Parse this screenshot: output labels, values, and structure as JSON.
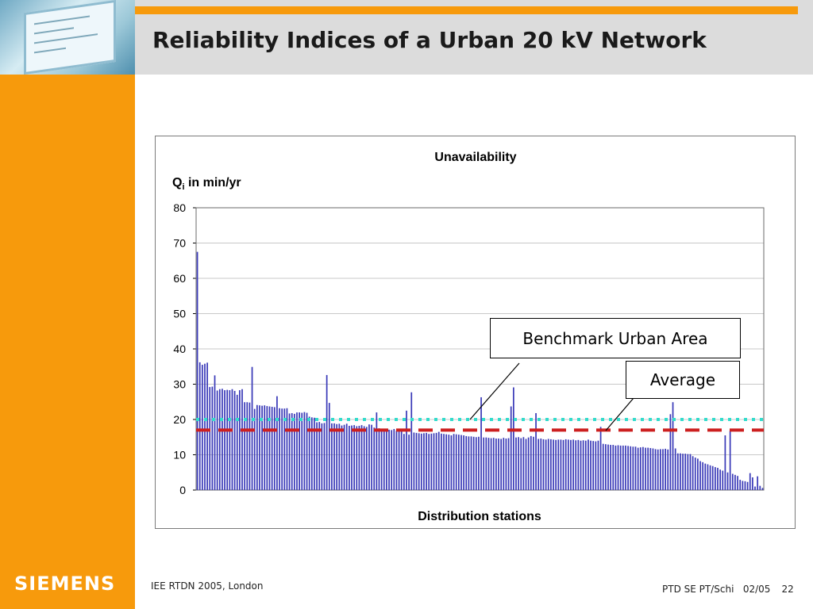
{
  "slide": {
    "title": "Reliability Indices of a Urban 20 kV Network",
    "logo": "SIEMENS",
    "footer_left": "IEE RTDN 2005, London",
    "footer_org": "PTD SE PT/Schi",
    "footer_date": "02/05",
    "page_number": "22",
    "colors": {
      "sidebar": "#f79a0c",
      "header": "#dcdcdc"
    }
  },
  "chart_data": {
    "type": "bar",
    "title": "Unavailability",
    "ylabel": "Q",
    "ylabel_sub": "i",
    "ylabel_unit": " in min/yr",
    "xlabel": "Distribution stations",
    "ylim": [
      0,
      80
    ],
    "yticks": [
      0,
      10,
      20,
      30,
      40,
      50,
      60,
      70,
      80
    ],
    "grid": true,
    "bar_color": "#3a3ab8",
    "values": [
      67.5,
      36.2,
      35.5,
      35.8,
      36.1,
      29.2,
      29.3,
      32.5,
      28.2,
      28.6,
      28.7,
      28.3,
      28.4,
      28.3,
      28.6,
      28.1,
      27.0,
      28.3,
      28.6,
      24.9,
      24.9,
      24.8,
      34.9,
      23.0,
      24.1,
      24.0,
      23.9,
      24.0,
      23.8,
      23.7,
      23.6,
      23.5,
      26.6,
      23.2,
      23.1,
      23.1,
      23.2,
      21.7,
      21.8,
      21.6,
      22.0,
      22.0,
      21.9,
      22.1,
      21.9,
      20.8,
      20.6,
      20.5,
      19.2,
      19.3,
      18.9,
      19.0,
      32.6,
      24.7,
      18.9,
      18.9,
      18.7,
      18.8,
      18.3,
      18.5,
      18.8,
      18.2,
      18.3,
      18.4,
      18.1,
      18.2,
      18.4,
      18.1,
      17.9,
      18.6,
      18.5,
      17.7,
      22.0,
      17.5,
      17.4,
      17.3,
      17.2,
      17.1,
      17.0,
      17.3,
      16.8,
      16.9,
      17.0,
      15.9,
      22.5,
      15.7,
      27.7,
      16.3,
      16.2,
      16.1,
      16.0,
      16.1,
      16.2,
      15.9,
      16.0,
      16.1,
      16.2,
      16.5,
      16.0,
      15.9,
      15.8,
      15.7,
      15.5,
      15.9,
      15.8,
      15.7,
      15.6,
      15.5,
      15.3,
      15.2,
      15.2,
      15.1,
      15.0,
      15.1,
      26.3,
      14.9,
      14.9,
      14.8,
      14.7,
      14.8,
      14.6,
      14.6,
      14.5,
      14.8,
      14.6,
      14.7,
      23.7,
      29.1,
      14.9,
      15.0,
      14.7,
      15.0,
      14.5,
      14.9,
      15.3,
      15.1,
      21.8,
      14.5,
      14.6,
      14.4,
      14.3,
      14.5,
      14.4,
      14.3,
      14.2,
      14.3,
      14.3,
      14.2,
      14.4,
      14.3,
      14.2,
      14.3,
      14.1,
      14.2,
      14.0,
      14.1,
      14.0,
      14.3,
      14.0,
      13.9,
      13.8,
      14.0,
      17.9,
      13.1,
      13.0,
      12.9,
      12.8,
      12.8,
      12.6,
      12.7,
      12.6,
      12.6,
      12.6,
      12.5,
      12.4,
      12.3,
      12.3,
      12.0,
      12.1,
      12.2,
      12.0,
      12.0,
      11.9,
      11.8,
      11.6,
      11.5,
      11.6,
      11.6,
      11.7,
      11.5,
      21.5,
      24.9,
      11.8,
      10.4,
      10.4,
      10.3,
      10.3,
      10.2,
      10.2,
      9.6,
      9.2,
      8.9,
      8.2,
      7.9,
      7.5,
      7.3,
      7.0,
      6.8,
      6.5,
      6.3,
      5.8,
      5.5,
      15.5,
      5.0,
      16.8,
      4.6,
      4.3,
      4.0,
      2.9,
      2.6,
      2.5,
      2.3,
      4.8,
      3.6,
      1.0,
      3.9,
      1.2,
      0.6
    ],
    "reference_lines": [
      {
        "name": "Benchmark Urban Area",
        "value": 20.0,
        "color": "#33dccc",
        "style": "dotted"
      },
      {
        "name": "Average",
        "value": 17.0,
        "color": "#cc1f1f",
        "style": "dashed"
      }
    ]
  }
}
